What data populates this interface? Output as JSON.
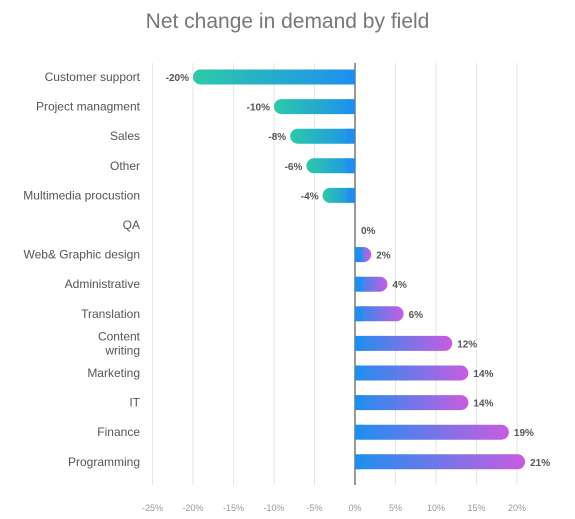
{
  "chart_data": {
    "type": "bar",
    "orientation": "horizontal",
    "title": "Net change in demand by field",
    "xlabel": "",
    "ylabel": "",
    "xlim": [
      -25,
      20
    ],
    "x_ticks": [
      "-25%",
      "-20%",
      "-15%",
      "-10%",
      "-5%",
      "0%",
      "5%",
      "10%",
      "15%",
      "20%"
    ],
    "grid": true,
    "categories": [
      "Customer support",
      "Project  managment",
      "Sales",
      "Other",
      "Multimedia procustion",
      "QA",
      "Web& Graphic design",
      "Administrative",
      "Translation",
      "Content writing",
      "Marketing",
      "IT",
      "Finance",
      "Programming"
    ],
    "category_lines": [
      [
        "Customer support"
      ],
      [
        "Project  managment"
      ],
      [
        "Sales"
      ],
      [
        "Other"
      ],
      [
        "Multimedia procustion"
      ],
      [
        "QA"
      ],
      [
        "Web& Graphic design"
      ],
      [
        "Administrative"
      ],
      [
        "Translation"
      ],
      [
        "Content",
        "writing"
      ],
      [
        "Marketing"
      ],
      [
        "IT"
      ],
      [
        "Finance"
      ],
      [
        "Programming"
      ]
    ],
    "values": [
      -20,
      -10,
      -8,
      -6,
      -4,
      0,
      2,
      4,
      6,
      12,
      14,
      14,
      19,
      21
    ],
    "data_labels": [
      "-20%",
      "-10%",
      "-8%",
      "-6%",
      "-4%",
      "0%",
      "2%",
      "4%",
      "6%",
      "12%",
      "14%",
      "14%",
      "19%",
      "21%"
    ],
    "colors": {
      "negative_gradient": [
        "#2cc9a8",
        "#1e8ff0"
      ],
      "positive_gradient": [
        "#1e8ff0",
        "#c85ce0"
      ],
      "label": "#555555",
      "axis_tick": "#999999",
      "title": "#777777",
      "grid": "#e6e6e6",
      "zero_line": "#333333"
    }
  }
}
